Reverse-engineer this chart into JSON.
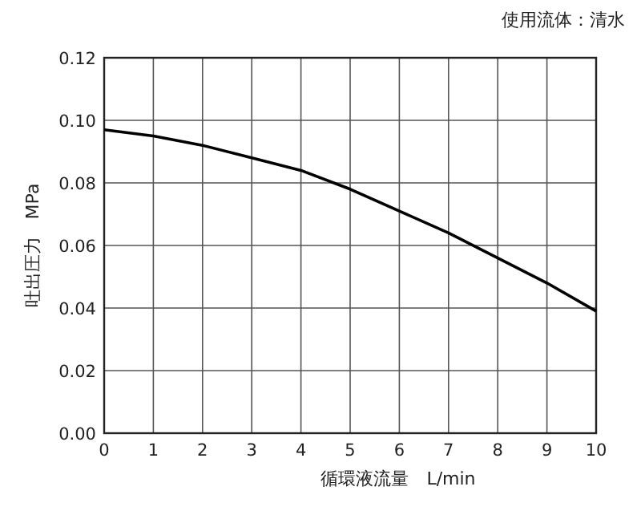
{
  "chart_data": {
    "type": "line",
    "xlabel": "循環液流量　L/min",
    "ylabel": "吐出圧力　MPa",
    "annotations": [
      "使用流体：清水"
    ],
    "x": [
      0,
      1,
      2,
      3,
      4,
      5,
      6,
      7,
      8,
      9,
      10
    ],
    "series": [
      {
        "color": "#000000",
        "values": [
          0.097,
          0.095,
          0.092,
          0.088,
          0.084,
          0.078,
          0.071,
          0.064,
          0.056,
          0.048,
          0.039
        ]
      }
    ],
    "xlim": [
      0,
      10
    ],
    "xticks": [
      0,
      1,
      2,
      3,
      4,
      5,
      6,
      7,
      8,
      9,
      10
    ],
    "ylim": [
      0,
      0.12
    ],
    "yticks": [
      {
        "value": 0,
        "label": "0.00"
      },
      0.02,
      0.04,
      0.06,
      0.08,
      {
        "value": 0.1,
        "label": "0.10"
      },
      0.12
    ],
    "grid": true,
    "marker": "none",
    "line_style": "solid"
  }
}
